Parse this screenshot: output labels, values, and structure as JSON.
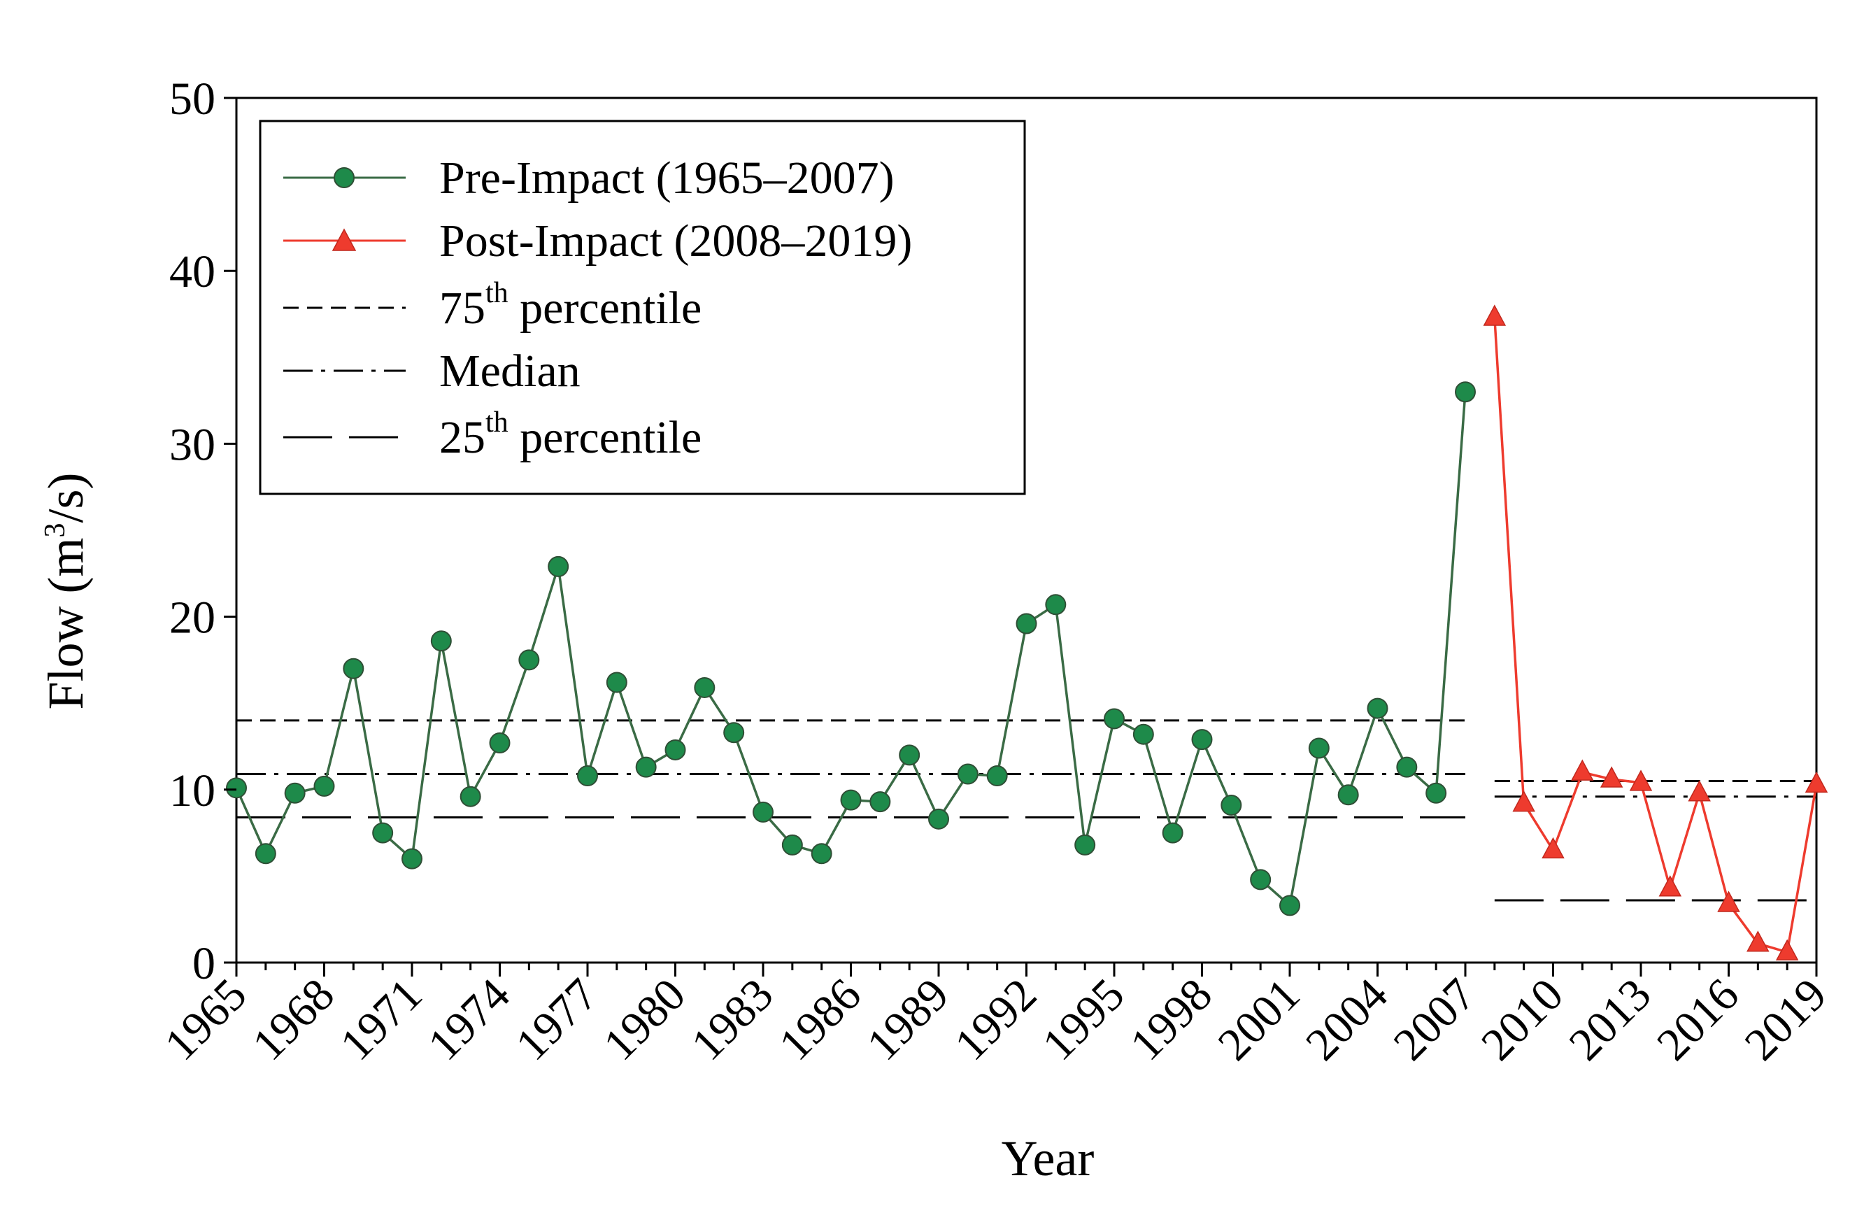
{
  "chart_data": {
    "type": "line",
    "title": "",
    "xlabel": "Year",
    "ylabel": {
      "prefix": "Flow (m",
      "sup": "3",
      "suffix": "/s)"
    },
    "xlim": [
      1965,
      2019
    ],
    "ylim": [
      0,
      50
    ],
    "yticks": [
      0,
      10,
      20,
      30,
      40,
      50
    ],
    "xticks": [
      1965,
      1968,
      1971,
      1974,
      1977,
      1980,
      1983,
      1986,
      1989,
      1992,
      1995,
      1998,
      2001,
      2004,
      2007,
      2010,
      2013,
      2016,
      2019
    ],
    "grid": false,
    "legend_position": "top-left",
    "series": [
      {
        "name": "Pre-Impact (1965–2007)",
        "color": "#3a6b45",
        "marker": "circle",
        "marker_fill": "#1e8a4a",
        "x": [
          1965,
          1966,
          1967,
          1968,
          1969,
          1970,
          1971,
          1972,
          1973,
          1974,
          1975,
          1976,
          1977,
          1978,
          1979,
          1980,
          1981,
          1982,
          1983,
          1984,
          1985,
          1986,
          1987,
          1988,
          1989,
          1990,
          1991,
          1992,
          1993,
          1994,
          1995,
          1996,
          1997,
          1998,
          1999,
          2000,
          2001,
          2002,
          2003,
          2004,
          2005,
          2006,
          2007
        ],
        "values": [
          10.1,
          6.3,
          9.8,
          10.2,
          17.0,
          7.5,
          6.0,
          18.6,
          9.6,
          12.7,
          17.5,
          22.9,
          10.8,
          16.2,
          11.3,
          12.3,
          15.9,
          13.3,
          8.7,
          6.8,
          6.3,
          9.4,
          9.3,
          12.0,
          8.3,
          10.9,
          10.8,
          19.6,
          20.7,
          6.8,
          14.1,
          13.2,
          7.5,
          12.9,
          9.1,
          4.8,
          3.3,
          12.4,
          9.7,
          14.7,
          11.3,
          9.8,
          33.0
        ]
      },
      {
        "name": "Post-Impact (2008–2019)",
        "color": "#ee3b2e",
        "marker": "triangle",
        "marker_fill": "#ee3b2e",
        "x": [
          2008,
          2009,
          2010,
          2011,
          2012,
          2013,
          2014,
          2015,
          2016,
          2017,
          2018,
          2019
        ],
        "values": [
          37.3,
          9.2,
          6.5,
          11.0,
          10.6,
          10.4,
          4.3,
          9.8,
          3.4,
          1.1,
          0.6,
          10.3
        ]
      }
    ],
    "reference_lines": [
      {
        "name": "75th percentile",
        "style": "short-dash",
        "segments": [
          {
            "x": [
              1965,
              2007
            ],
            "y": 14.0
          },
          {
            "x": [
              2008,
              2019
            ],
            "y": 10.5
          }
        ]
      },
      {
        "name": "Median",
        "style": "dash-dot",
        "segments": [
          {
            "x": [
              1965,
              2007
            ],
            "y": 10.9
          },
          {
            "x": [
              2008,
              2019
            ],
            "y": 9.6
          }
        ]
      },
      {
        "name": "25th percentile",
        "style": "long-dash",
        "segments": [
          {
            "x": [
              1965,
              2007
            ],
            "y": 8.4
          },
          {
            "x": [
              2008,
              2019
            ],
            "y": 3.6
          }
        ]
      }
    ],
    "legend": [
      {
        "key": "pre",
        "label": "Pre-Impact (1965–2007)"
      },
      {
        "key": "post",
        "label": "Post-Impact (2008–2019)"
      },
      {
        "key": "p75",
        "label_prefix": "75",
        "label_sup": "th",
        "label_suffix": " percentile"
      },
      {
        "key": "median",
        "label": "Median"
      },
      {
        "key": "p25",
        "label_prefix": "25",
        "label_sup": "th",
        "label_suffix": " percentile"
      }
    ]
  }
}
